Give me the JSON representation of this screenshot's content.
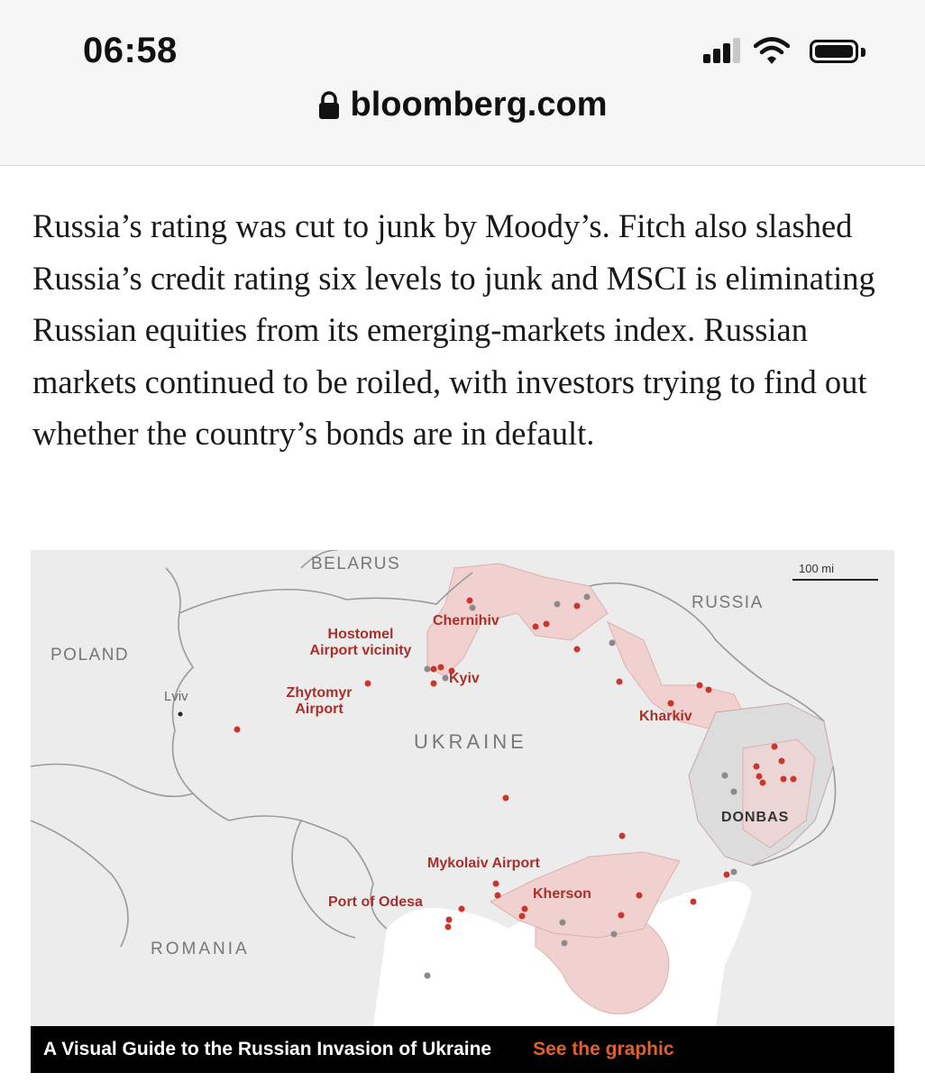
{
  "status_bar": {
    "time": "06:58"
  },
  "browser": {
    "url": "bloomberg.com"
  },
  "article": {
    "paragraph": "Russia’s rating was cut to junk by Moody’s. Fitch also slashed Russia’s credit rating six levels to junk and MSCI is eliminating Russian equities from its emerging-markets index. Russian markets continued to be roiled, with investors trying to find out whether the country’s bonds are in default."
  },
  "map": {
    "countries": {
      "belarus": "BELARUS",
      "russia": "RUSSIA",
      "poland": "POLAND",
      "ukraine": "UKRAINE",
      "romania": "ROMANIA"
    },
    "region": "DONBAS",
    "scale": "100 mi",
    "cities": {
      "lviv": "Lviv",
      "chernihiv": "Chernihiv",
      "hostomel_1": "Hostomel",
      "hostomel_2": "Airport vicinity",
      "kyiv": "Kyiv",
      "zhytomyr_1": "Zhytomyr",
      "zhytomyr_2": "Airport",
      "kharkiv": "Kharkiv",
      "mykolaiv": "Mykolaiv Airport",
      "kherson": "Kherson",
      "odesa": "Port of Odesa"
    },
    "colors": {
      "occupied_fill": "#f1d1d0",
      "strike_dot": "#c8362d",
      "land": "#ececec",
      "sea": "#ffffff"
    }
  },
  "banner": {
    "title": "A Visual Guide to the Russian Invasion of Ukraine",
    "link": "See the graphic"
  }
}
